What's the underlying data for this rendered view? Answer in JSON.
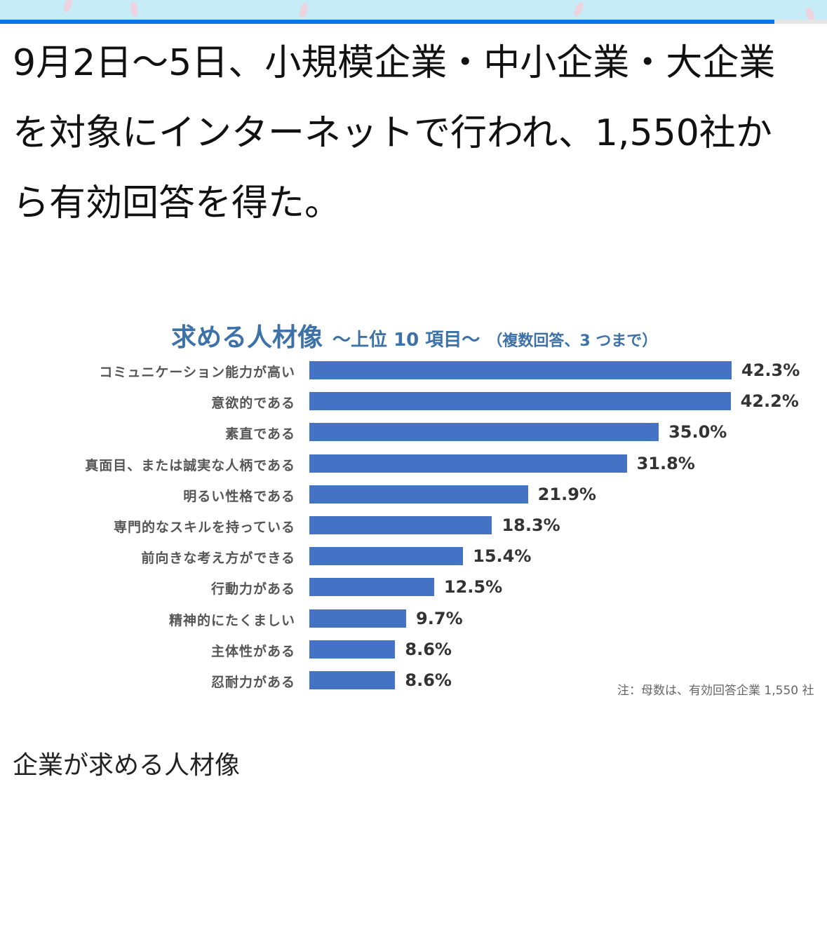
{
  "article": {
    "lines": [
      "9月2日〜5日、小規模企業・中小企業・大企業",
      "を対象にインターネットで行われ、1,550社か",
      "ら有効回答を得た。"
    ]
  },
  "reading_progress_percent": 93.6,
  "colors": {
    "bar": "#4472c4",
    "title": "#3d72a8",
    "progress": "#0a74ea"
  },
  "chart_data": {
    "type": "bar",
    "orientation": "horizontal",
    "title": "求める人材像",
    "subtitle": "〜上位 10 項目〜",
    "subnote": "（複数回答、3 つまで）",
    "categories": [
      "コミュニケーション能力が高い",
      "意欲的である",
      "素直である",
      "真面目、または誠実な人柄である",
      "明るい性格である",
      "専門的なスキルを持っている",
      "前向きな考え方ができる",
      "行動力がある",
      "精神的にたくましい",
      "主体性がある",
      "忍耐力がある"
    ],
    "values": [
      42.3,
      42.2,
      35.0,
      31.8,
      21.9,
      18.3,
      15.4,
      12.5,
      9.7,
      8.6,
      8.6
    ],
    "value_labels": [
      "42.3%",
      "42.2%",
      "35.0%",
      "31.8%",
      "21.9%",
      "18.3%",
      "15.4%",
      "12.5%",
      "9.7%",
      "8.6%",
      "8.6%"
    ],
    "xlim": [
      0,
      42.3
    ],
    "footnote": "注：母数は、有効回答企業 1,550 社"
  },
  "caption": "企業が求める人材像"
}
